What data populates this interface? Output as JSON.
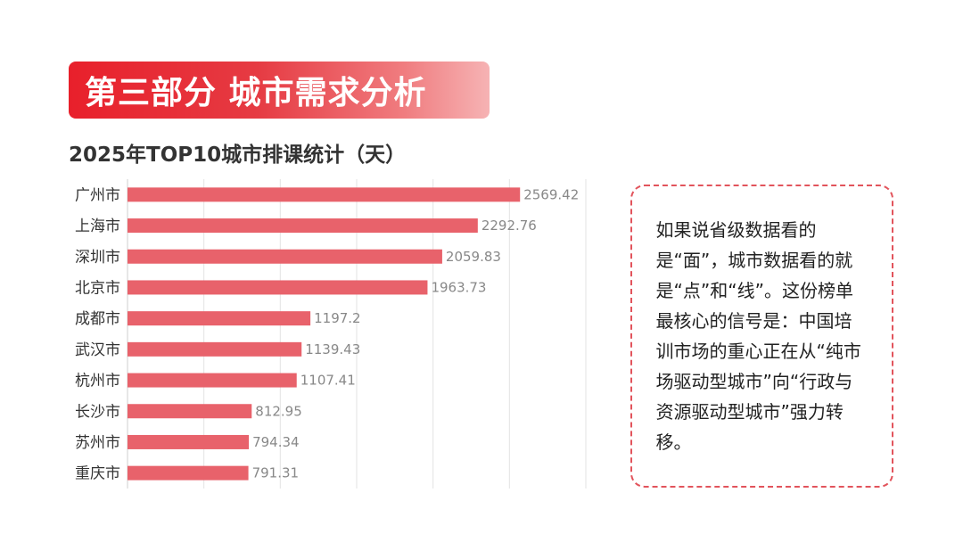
{
  "banner": {
    "text": "第三部分 城市需求分析"
  },
  "note": {
    "text": "如果说省级数据看的是“面”，城市数据看的就是“点”和“线”。这份榜单最核心的信号是：中国培训市场的重心正在从“纯市场驱动型城市”向“行政与资源驱动型城市”强力转移。"
  },
  "chart_data": {
    "type": "bar",
    "orientation": "horizontal",
    "title": "2025年TOP10城市排课统计（天）",
    "categories": [
      "广州市",
      "上海市",
      "深圳市",
      "北京市",
      "成都市",
      "武汉市",
      "杭州市",
      "长沙市",
      "苏州市",
      "重庆市"
    ],
    "values": [
      2569.42,
      2292.76,
      2059.83,
      1963.73,
      1197.2,
      1139.43,
      1107.41,
      812.95,
      794.34,
      791.31
    ],
    "value_labels": [
      "2569.42",
      "2292.76",
      "2059.83",
      "1963.73",
      "1197.2",
      "1139.43",
      "1107.41",
      "812.95",
      "794.34",
      "791.31"
    ],
    "xlim": [
      0,
      3000
    ],
    "grid": "vertical",
    "bar_color": "#e8626b",
    "label_color": "#888888",
    "category_color": "#333333",
    "grid_color": "#e3e3e3"
  }
}
